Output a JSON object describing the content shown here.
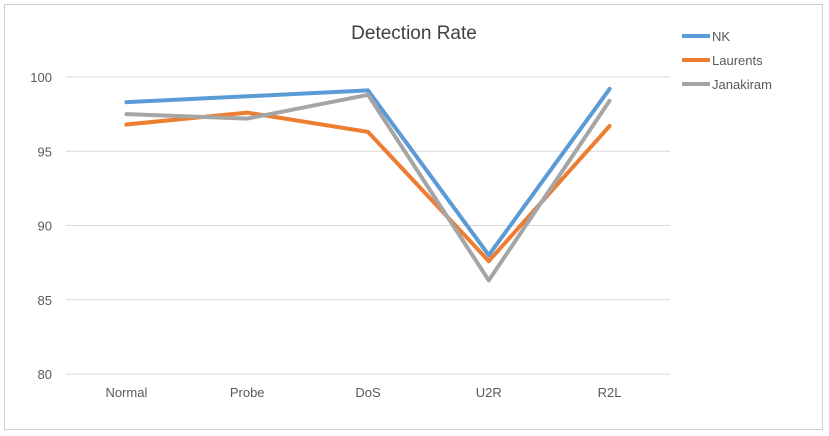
{
  "chart_data": {
    "type": "line",
    "title": "Detection Rate",
    "xlabel": "",
    "ylabel": "",
    "categories": [
      "Normal",
      "Probe",
      "DoS",
      "U2R",
      "R2L"
    ],
    "ylim": [
      80,
      100
    ],
    "yticks": [
      80,
      85,
      90,
      95,
      100
    ],
    "grid": true,
    "legend_position": "right",
    "series": [
      {
        "name": "NK",
        "color": "#5B9BD5",
        "values": [
          98.3,
          98.7,
          99.1,
          88.0,
          99.2
        ]
      },
      {
        "name": "Laurents",
        "color": "#ED7D31",
        "values": [
          96.8,
          97.6,
          96.3,
          87.6,
          96.7
        ]
      },
      {
        "name": "Janakiram",
        "color": "#A5A5A5",
        "values": [
          97.5,
          97.2,
          98.8,
          86.3,
          98.4
        ]
      }
    ]
  }
}
